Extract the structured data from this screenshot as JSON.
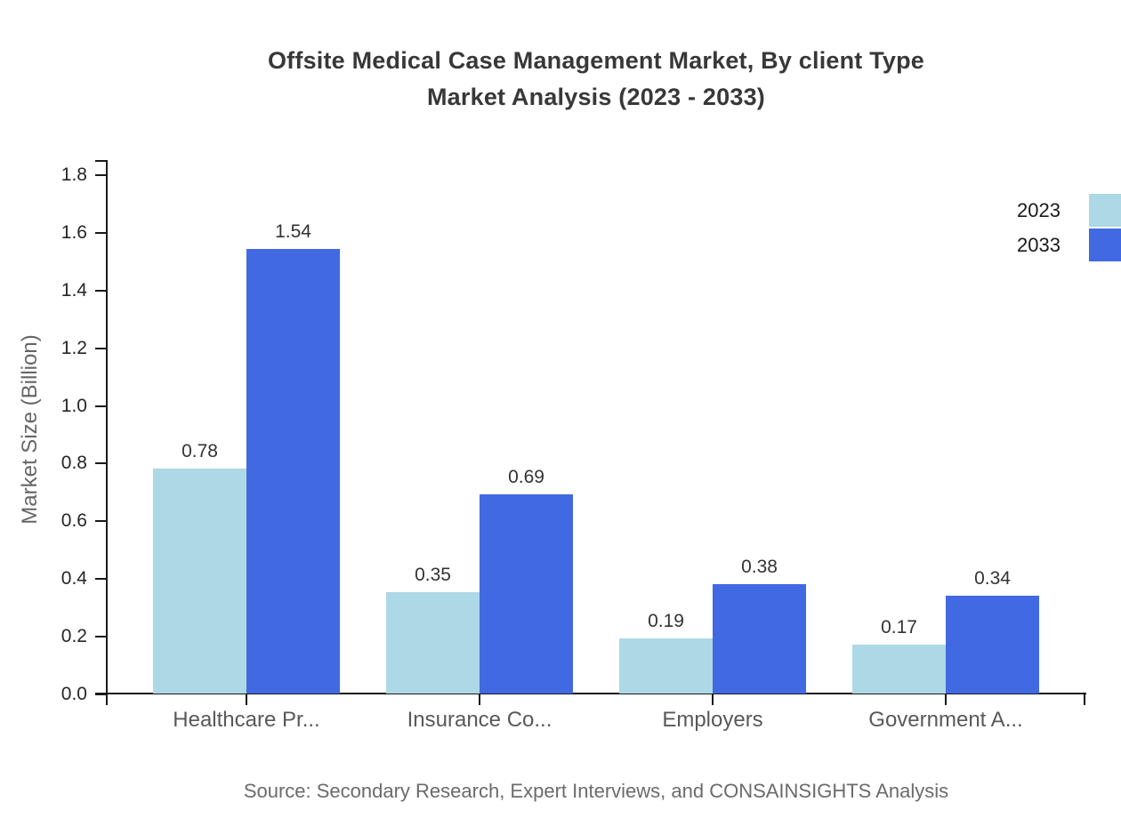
{
  "title": {
    "line1": "Offsite Medical Case Management Market, By client Type",
    "line2": "Market Analysis (2023 - 2033)"
  },
  "axes": {
    "ylabel": "Market Size (Billion)",
    "yticks": [
      "0.0",
      "0.2",
      "0.4",
      "0.6",
      "0.8",
      "1.0",
      "1.2",
      "1.4",
      "1.6",
      "1.8"
    ]
  },
  "legend": {
    "items": [
      {
        "label": "2023",
        "color": "#ADD8E6"
      },
      {
        "label": "2033",
        "color": "#4169E1"
      }
    ]
  },
  "source_note": "Source: Secondary Research, Expert Interviews, and CONSAINSIGHTS Analysis",
  "chart_data": {
    "type": "bar",
    "title": "Offsite Medical Case Management Market, By client Type Market Analysis (2023 - 2033)",
    "categories": [
      "Healthcare Pr...",
      "Insurance Co...",
      "Employers",
      "Government A..."
    ],
    "series": [
      {
        "name": "2023",
        "color": "#ADD8E6",
        "values": [
          0.78,
          0.35,
          0.19,
          0.17
        ]
      },
      {
        "name": "2033",
        "color": "#4169E1",
        "values": [
          1.54,
          0.69,
          0.38,
          0.34
        ]
      }
    ],
    "xlabel": "",
    "ylabel": "Market Size (Billion)",
    "ylim": [
      0,
      1.8
    ],
    "ytick_step": 0.2,
    "bar_value_labels": true,
    "value_label_format": "0.00",
    "legend_position": "upper-right-outside",
    "grid": false
  }
}
